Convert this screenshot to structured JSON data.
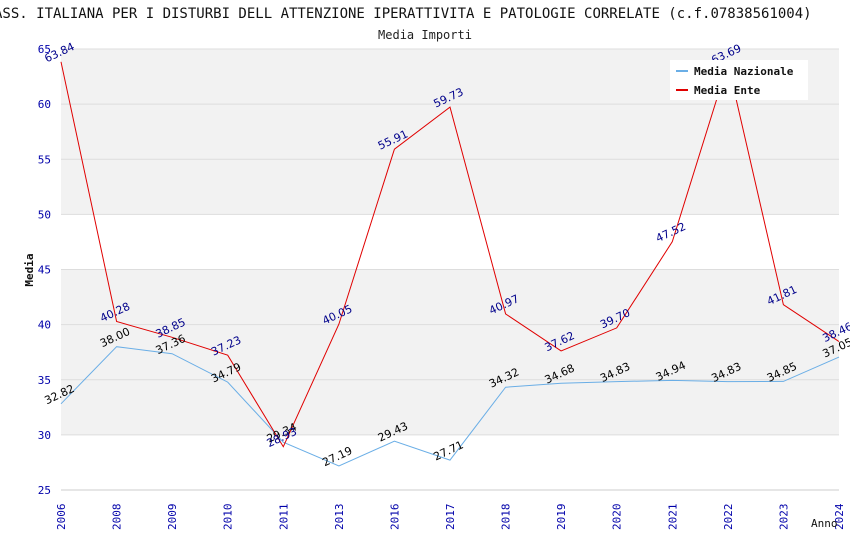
{
  "chart_data": {
    "type": "line",
    "title": "ASS. ITALIANA PER I DISTURBI DELL ATTENZIONE IPERATTIVITA E PATOLOGIE CORRELATE (c.f.07838561004)",
    "subtitle": "Media Importi",
    "xlabel": "Anno",
    "ylabel": "Media",
    "ylim": [
      25,
      65
    ],
    "yticks": [
      25,
      30,
      35,
      40,
      45,
      50,
      55,
      60,
      65
    ],
    "grid": true,
    "legend_position": "top-right",
    "categories": [
      "2006",
      "2008",
      "2009",
      "2010",
      "2011",
      "2013",
      "2016",
      "2017",
      "2018",
      "2019",
      "2020",
      "2021",
      "2022",
      "2023",
      "2024"
    ],
    "series": [
      {
        "name": "Media Nazionale",
        "color": "#6aaee6",
        "label_color": "#000000",
        "values": [
          32.82,
          38.0,
          37.36,
          34.79,
          29.34,
          27.19,
          29.43,
          27.71,
          34.32,
          34.68,
          34.83,
          34.94,
          34.83,
          34.85,
          37.05
        ],
        "labels": [
          "32.82",
          "38.00",
          "37.36",
          "34.79",
          "29.34",
          "27.19",
          "29.43",
          "27.71",
          "34.32",
          "34.68",
          "34.83",
          "34.94",
          "34.83",
          "34.85",
          "37.05"
        ]
      },
      {
        "name": "Media Ente",
        "color": "#e00000",
        "label_color": "#00008b",
        "values": [
          63.84,
          40.28,
          38.85,
          37.23,
          28.93,
          40.05,
          55.91,
          59.73,
          40.97,
          37.62,
          39.7,
          47.52,
          63.69,
          41.81,
          38.46
        ],
        "labels": [
          "63.84",
          "40.28",
          "38.85",
          "37.23",
          "28.93",
          "40.05",
          "55.91",
          "59.73",
          "40.97",
          "37.62",
          "39.70",
          "47.52",
          "63.69",
          "41.81",
          "38.46"
        ]
      }
    ]
  },
  "colors": {
    "band_fill": "#f2f2f2",
    "grid_line": "#dddddd",
    "tick_label": "#0000aa"
  }
}
